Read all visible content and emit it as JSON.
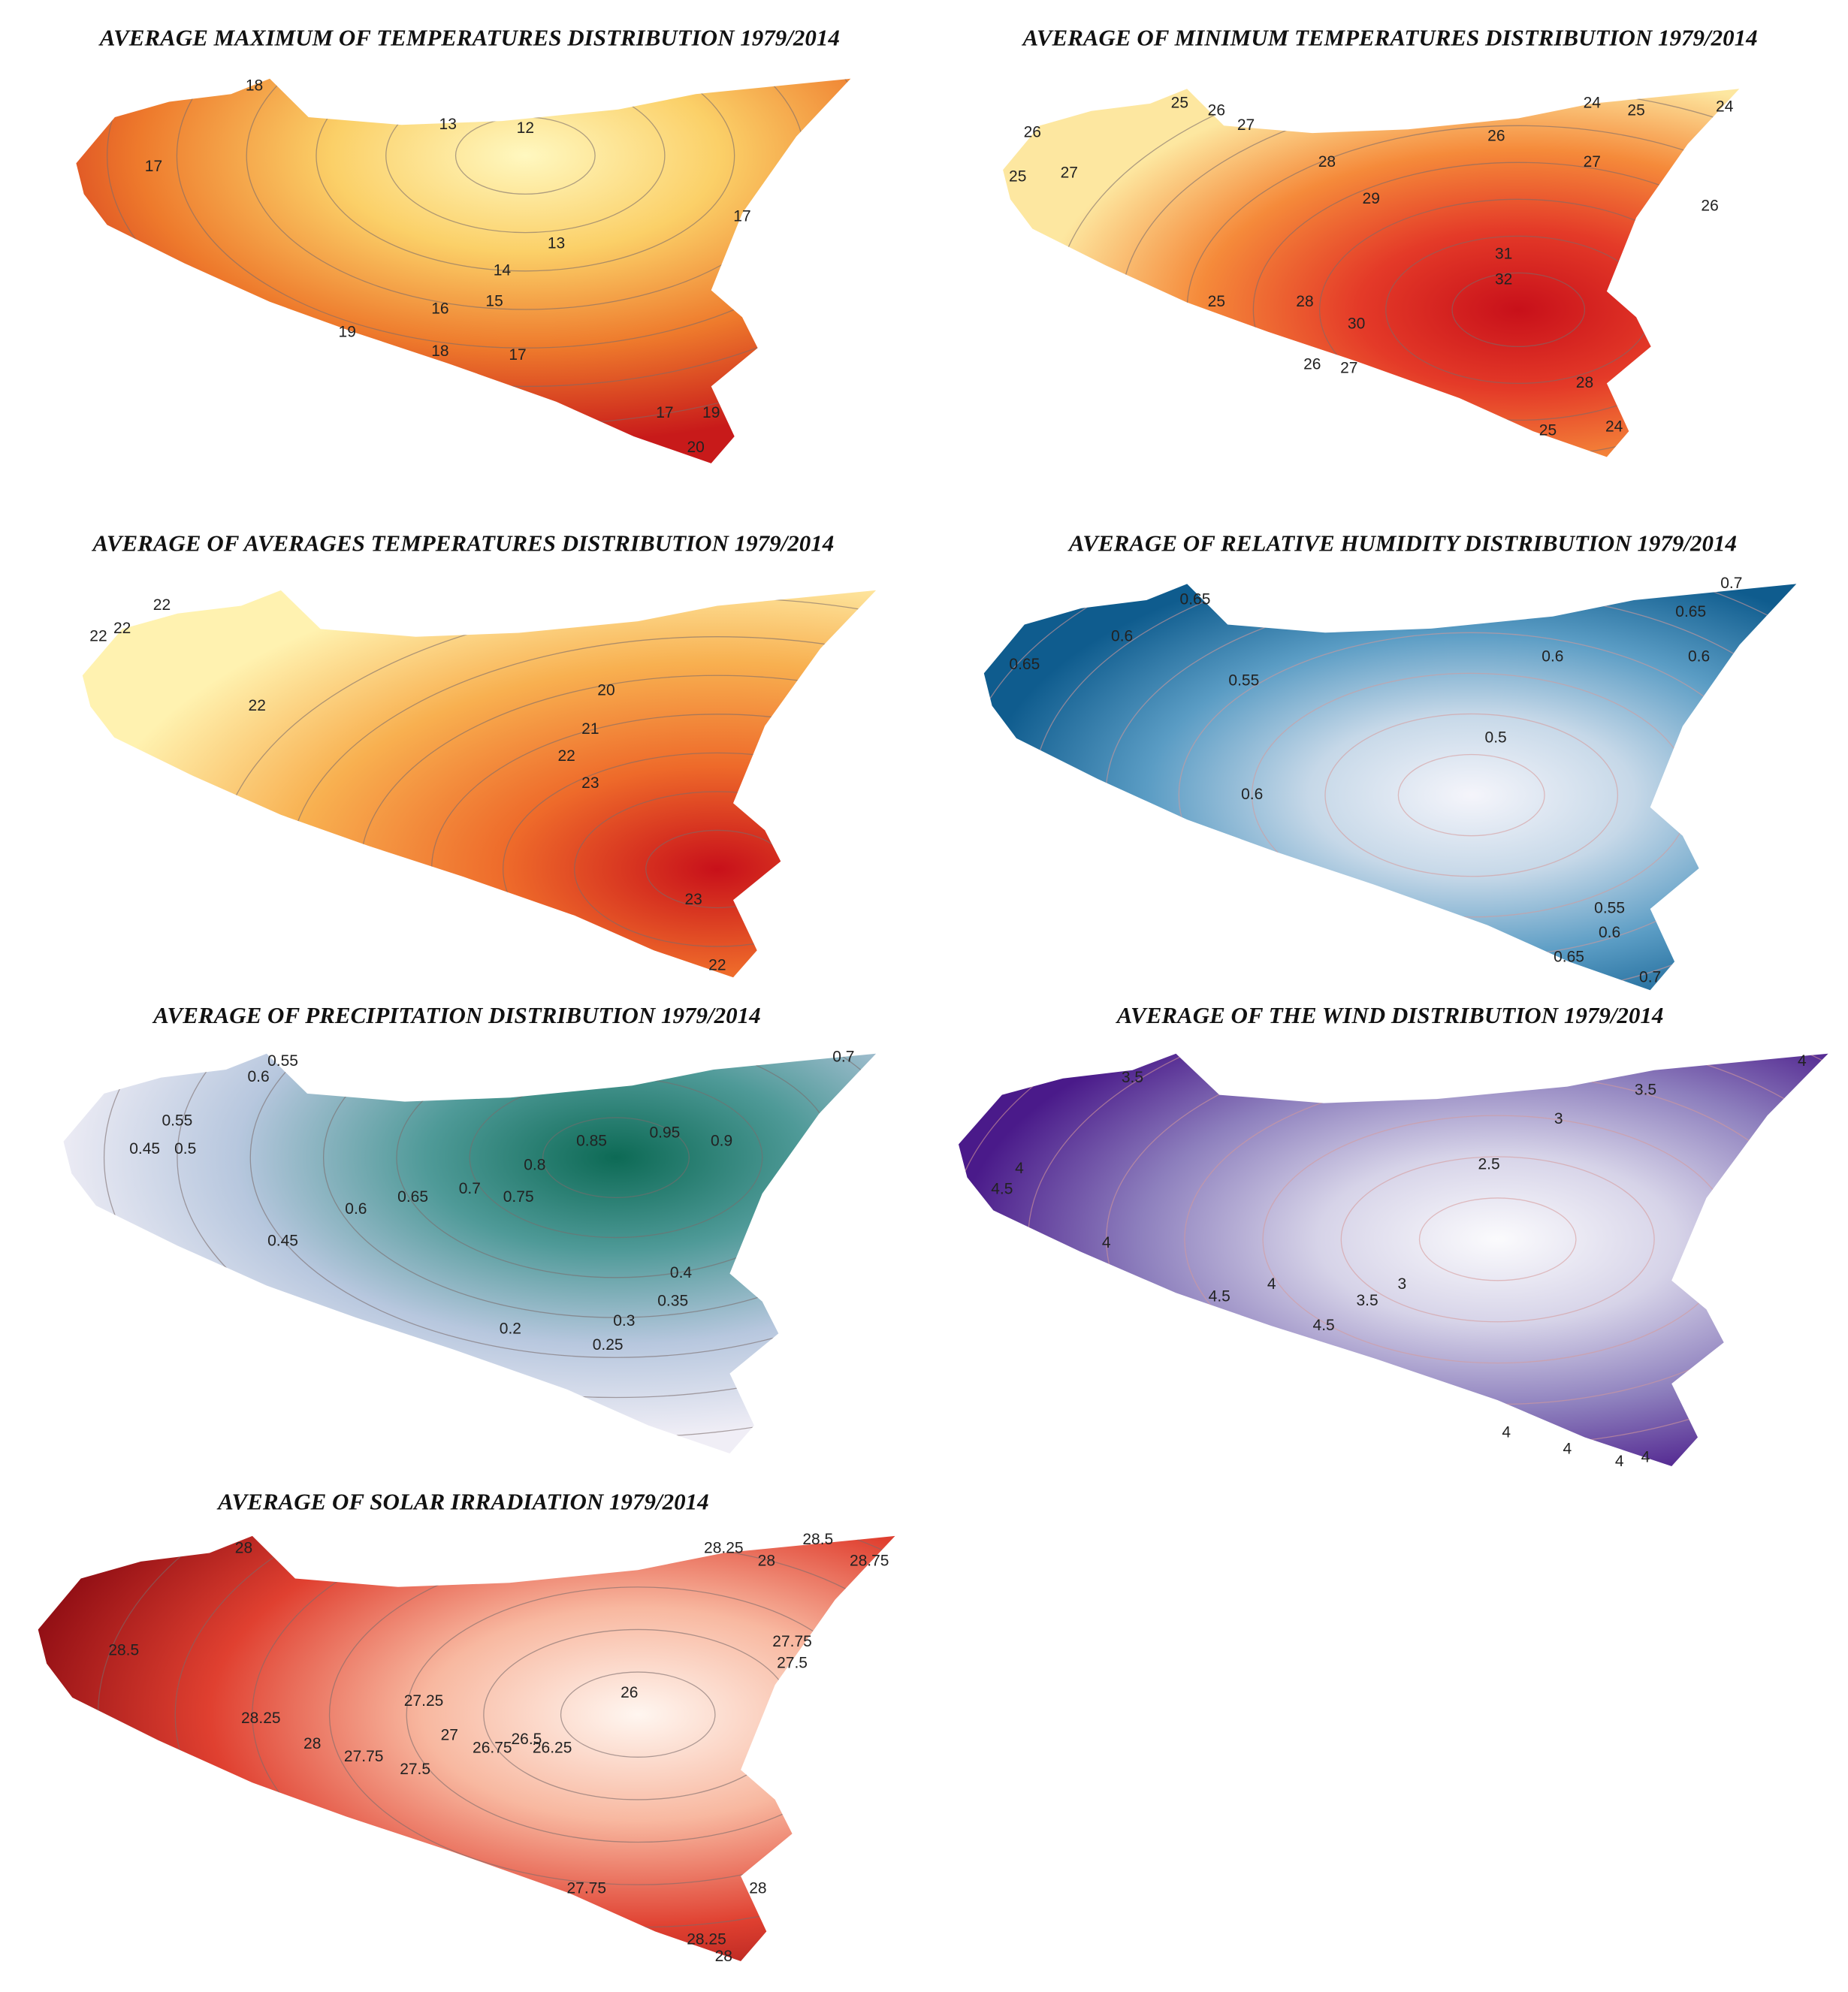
{
  "maps": [
    {
      "title": "AVERAGE MAXIMUM OF TEMPERATURES DISTRIBUTION 1979/2014",
      "contour_labels": [
        18,
        13,
        12,
        17,
        17,
        13,
        14,
        15,
        16,
        19,
        18,
        17,
        17,
        19,
        20
      ]
    },
    {
      "title": "AVERAGE OF MINIMUM TEMPERATURES DISTRIBUTION 1979/2014",
      "contour_labels": [
        25,
        26,
        27,
        24,
        25,
        24,
        26,
        28,
        27,
        29,
        26,
        27,
        25,
        26,
        31,
        32,
        25,
        28,
        30,
        26,
        27,
        28,
        25,
        24
      ]
    },
    {
      "title": "AVERAGE OF AVERAGES TEMPERATURES DISTRIBUTION 1979/2014",
      "contour_labels": [
        22,
        22,
        22,
        22,
        20,
        21,
        22,
        23,
        23,
        22
      ]
    },
    {
      "title": "AVERAGE OF RELATIVE HUMIDITY DISTRIBUTION 1979/2014",
      "contour_labels": [
        0.65,
        0.6,
        0.65,
        0.7,
        0.65,
        0.6,
        0.6,
        0.55,
        0.5,
        0.6,
        0.55,
        0.6,
        0.65,
        0.7
      ]
    },
    {
      "title": "AVERAGE OF PRECIPITATION DISTRIBUTION 1979/2014",
      "contour_labels": [
        0.55,
        0.6,
        0.55,
        0.5,
        0.45,
        0.7,
        0.95,
        0.9,
        0.85,
        0.8,
        0.75,
        0.7,
        0.65,
        0.6,
        0.45,
        0.4,
        0.35,
        0.3,
        0.25,
        0.2
      ]
    },
    {
      "title": "AVERAGE OF THE WIND  DISTRIBUTION 1979/2014",
      "contour_labels": [
        3.5,
        3.5,
        4,
        3,
        2.5,
        4,
        4.5,
        4,
        4,
        3.5,
        3,
        4.5,
        4.5,
        4,
        4,
        4,
        4
      ]
    },
    {
      "title": "AVERAGE OF SOLAR IRRADIATION 1979/2014",
      "contour_labels": [
        28,
        28.25,
        28,
        28.5,
        28.75,
        27.75,
        27.5,
        28.5,
        28.25,
        28,
        27.75,
        27.5,
        27.25,
        27,
        26.75,
        26.5,
        26.25,
        26,
        27.75,
        28,
        28.25,
        28
      ]
    }
  ]
}
